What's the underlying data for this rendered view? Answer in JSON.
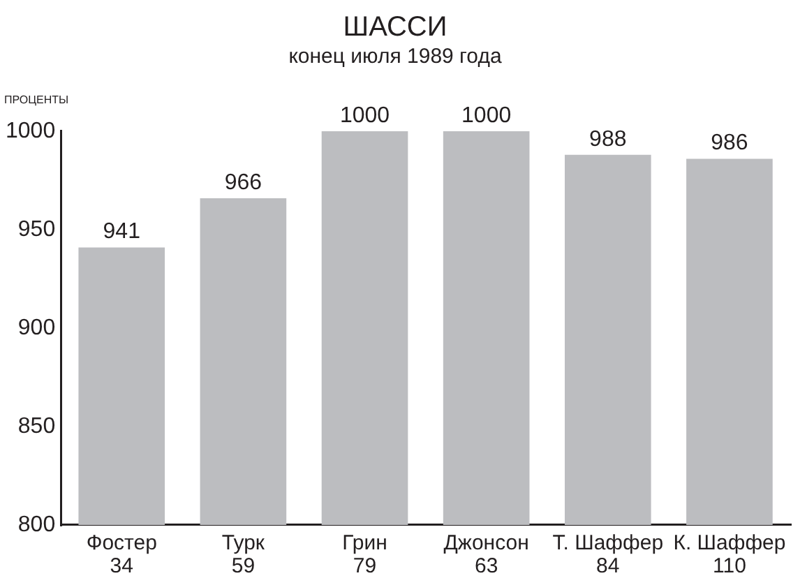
{
  "chart_data": {
    "type": "bar",
    "title": "ШАССИ",
    "subtitle": "конец июля 1989 года",
    "ylabel": "ПРОЦЕНТЫ",
    "categories": [
      "Фостер\n34",
      "Турк\n59",
      "Грин\n79",
      "Джонсон\n63",
      "Т. Шаффер\n84",
      "К. Шаффер\n110"
    ],
    "values": [
      941,
      966,
      1000,
      1000,
      988,
      986
    ],
    "color": "#bcbdc0",
    "ylim": [
      800,
      1000
    ],
    "yticks": [
      800,
      850,
      900,
      950,
      1000
    ],
    "data_labels": true,
    "grid": false,
    "legend": false
  }
}
